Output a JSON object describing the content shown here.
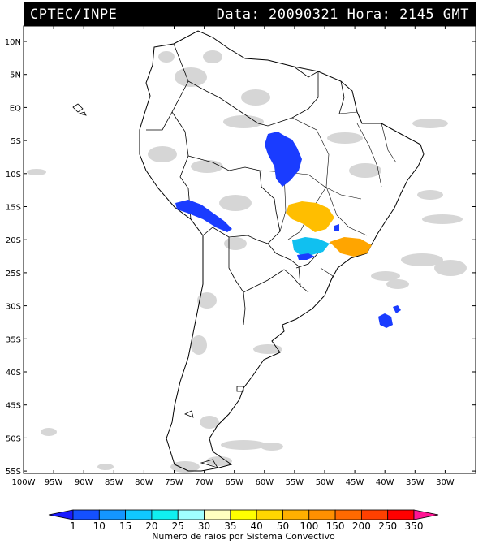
{
  "header": {
    "org": "CPTEC/INPE",
    "date_label": "Data:",
    "date_value": "20090321",
    "hour_label": "Hora:",
    "hour_value": "2145 GMT"
  },
  "axes": {
    "lat_labels": [
      "10N",
      "5N",
      "EQ",
      "5S",
      "10S",
      "15S",
      "20S",
      "25S",
      "30S",
      "35S",
      "40S",
      "45S",
      "50S",
      "55S"
    ],
    "lon_labels": [
      "100W",
      "95W",
      "90W",
      "85W",
      "80W",
      "75W",
      "70W",
      "65W",
      "60W",
      "55W",
      "50W",
      "45W",
      "40W",
      "35W",
      "30W"
    ]
  },
  "colorbar": {
    "ticks": [
      "1",
      "10",
      "15",
      "20",
      "25",
      "30",
      "35",
      "40",
      "50",
      "100",
      "150",
      "200",
      "250",
      "350"
    ],
    "colors": [
      "#1a1aff",
      "#1450ff",
      "#1496ff",
      "#10c8ff",
      "#10f0f0",
      "#a0ffff",
      "#ffffc0",
      "#ffff00",
      "#ffd700",
      "#ffb000",
      "#ff9000",
      "#ff6a00",
      "#ff4000",
      "#ff0000",
      "#ff1493"
    ],
    "title": "Numero de raios por Sistema Convectivo"
  },
  "storm_colors": {
    "blue": "#1a3cff",
    "yellow": "#ffbe00",
    "cyan": "#10c0f0",
    "gold": "#ffa500",
    "cloud": "#cccccc"
  }
}
